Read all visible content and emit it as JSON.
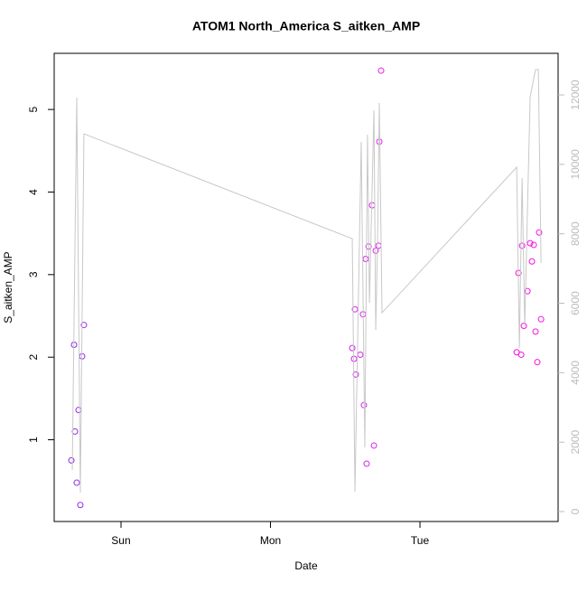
{
  "chart_data": {
    "type": "scatter",
    "title": "ATOM1 North_America S_aitken_AMP",
    "x_label": "Date",
    "y_label": "S_aitken_AMP",
    "xlim": [
      -0.447,
      2.924
    ],
    "xticks": [
      {
        "value": 0,
        "label": "Sun"
      },
      {
        "value": 1,
        "label": "Mon"
      },
      {
        "value": 2,
        "label": "Tue"
      }
    ],
    "ylim": [
      0.01,
      5.68
    ],
    "yticks": [
      1,
      2,
      3,
      4,
      5
    ],
    "y2lim": [
      -286,
      13198
    ],
    "y2ticks": [
      0,
      2000,
      4000,
      6000,
      8000,
      10000,
      12000
    ],
    "y2_color": "#bbbbbb",
    "series": [
      {
        "x": [
          -0.332,
          -0.314,
          -0.308,
          -0.296,
          -0.284,
          -0.272,
          -0.26,
          -0.248,
          1.547,
          1.559,
          1.565,
          1.571,
          1.601,
          1.619,
          1.625,
          1.637,
          1.643,
          1.656,
          1.68,
          1.692,
          1.704,
          1.722,
          1.728,
          1.74,
          2.647,
          2.659,
          2.677,
          2.683,
          2.695,
          2.719,
          2.737,
          2.749,
          2.761,
          2.773,
          2.785,
          2.797,
          2.81
        ],
        "values": [
          0.75,
          2.15,
          1.1,
          0.48,
          1.36,
          0.21,
          2.01,
          2.39,
          2.11,
          1.98,
          2.58,
          1.79,
          2.03,
          2.52,
          1.42,
          3.19,
          0.71,
          3.34,
          3.84,
          0.93,
          3.29,
          3.35,
          4.61,
          5.47,
          2.06,
          3.02,
          2.03,
          3.35,
          2.38,
          2.8,
          3.38,
          3.16,
          3.36,
          2.31,
          1.94,
          3.51,
          2.46
        ],
        "colors": [
          "#8a2be2",
          "#8a2be2",
          "#8f2ae6",
          "#922ae8",
          "#952aea",
          "#982aec",
          "#9b2aee",
          "#9e2af0",
          "#d21ef0",
          "#d31ef0",
          "#d41ef0",
          "#d51ef0",
          "#d81ef0",
          "#da1ef0",
          "#db1ef0",
          "#dc1ef0",
          "#dd1ef0",
          "#de1ef0",
          "#e01ef0",
          "#e11ef0",
          "#e21ef0",
          "#e31ef0",
          "#e41ef0",
          "#e51ef0",
          "#f510e0",
          "#f510e0",
          "#f610e0",
          "#f610e0",
          "#f710e0",
          "#f710e0",
          "#f810e0",
          "#f810e0",
          "#f910e0",
          "#f910e0",
          "#fa10e0",
          "#fa10e0",
          "#fb10e0"
        ]
      },
      {
        "type": "line",
        "axis": "y2",
        "color": "#c8c8c8",
        "x": [
          -0.326,
          -0.296,
          -0.272,
          -0.248,
          1.547,
          1.565,
          1.607,
          1.631,
          1.649,
          1.662,
          1.692,
          1.704,
          1.716,
          1.728,
          1.746,
          2.647,
          2.665,
          2.683,
          2.701,
          2.737,
          2.773,
          2.792,
          2.81
        ],
        "values": [
          1197,
          11921,
          547,
          10880,
          7860,
          573,
          10646,
          1848,
          10854,
          6013,
          11556,
          5232,
          7756,
          11765,
          5726,
          9917,
          4711,
          9604,
          5336,
          11947,
          12728,
          12728,
          7158
        ]
      }
    ]
  }
}
